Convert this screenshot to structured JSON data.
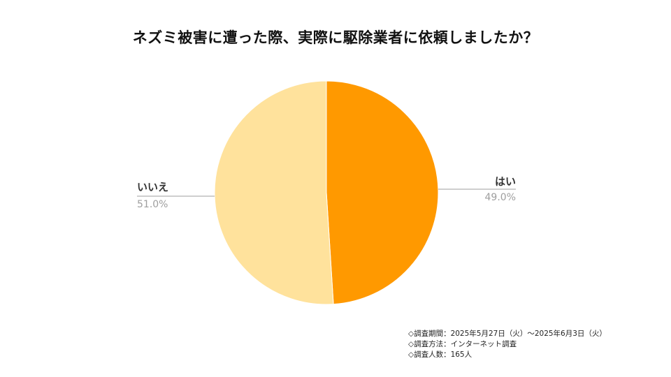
{
  "title": "ネズミ被害に遭った際、実際に駆除業者に依頼しましたか？",
  "chart_data": {
    "type": "pie",
    "title": "ネズミ被害に遭った際、実際に駆除業者に依頼しましたか？",
    "slices": [
      {
        "label": "はい",
        "value": 49.0,
        "value_label": "49.0%",
        "color": "#ff9900"
      },
      {
        "label": "いいえ",
        "value": 51.0,
        "value_label": "51.0%",
        "color": "#ffe29c"
      }
    ],
    "start_angle_deg": 0,
    "direction": "clockwise",
    "legend": "none"
  },
  "notes": [
    "◇調査期間：2025年5月27日（火）〜2025年6月3日（火）",
    "◇調査方法：インターネット調査",
    "◇調査人数：165人"
  ]
}
